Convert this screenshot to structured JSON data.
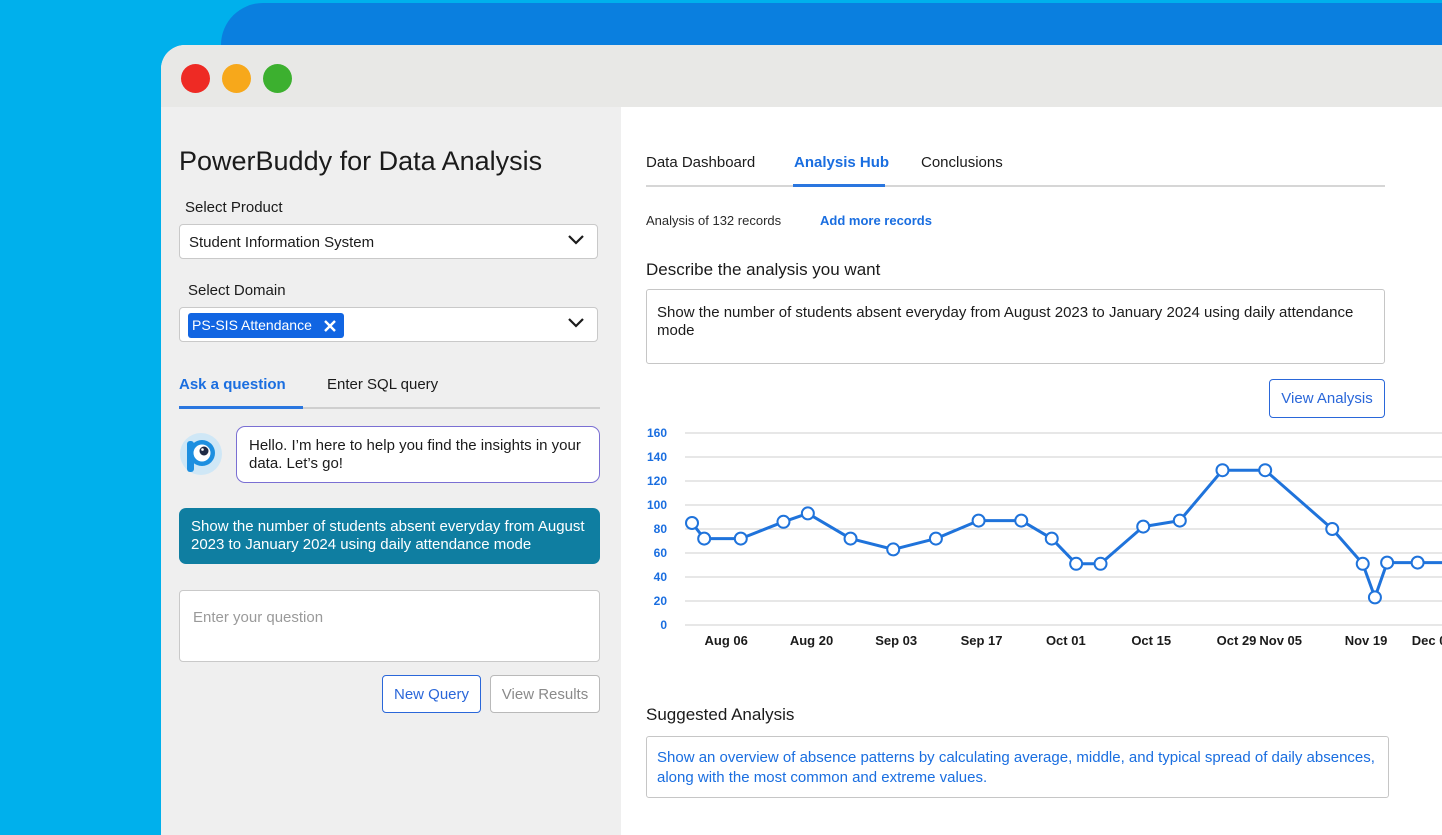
{
  "colors": {
    "backdrop": "#00b0ec",
    "accent_strip": "#0a7fdf",
    "accent": "#1a6ee0",
    "chip": "#1165e2",
    "user_message": "#0f7ea1",
    "line": "#1f73db"
  },
  "window_controls": [
    "close",
    "minimize",
    "maximize"
  ],
  "left_panel": {
    "title": "PowerBuddy for Data Analysis",
    "product_label": "Select Product",
    "product_value": "Student Information System",
    "domain_label": "Select Domain",
    "domain_chip": "PS-SIS Attendance",
    "tabs": [
      {
        "label": "Ask a question",
        "active": true
      },
      {
        "label": "Enter SQL query",
        "active": false
      }
    ],
    "assistant_message": "Hello. I’m here to help you find the insights in your data. Let’s go!",
    "user_message": "Show the number of students absent everyday from August 2023 to January 2024 using daily attendance mode",
    "question_placeholder": "Enter your question",
    "new_query_label": "New Query",
    "view_results_label": "View Results"
  },
  "right_panel": {
    "tabs": [
      {
        "label": "Data Dashboard",
        "active": false
      },
      {
        "label": "Analysis Hub",
        "active": true
      },
      {
        "label": "Conclusions",
        "active": false
      }
    ],
    "records_text": "Analysis of 132 records",
    "add_records_label": "Add more records",
    "describe_label": "Describe the analysis you want",
    "describe_text": "Show the number of students absent everyday from August 2023 to January 2024 using daily attendance mode",
    "view_analysis_label": "View Analysis",
    "suggested_label": "Suggested Analysis",
    "suggestion_text": "Show an overview of absence patterns by calculating average, middle, and typical spread of daily absences, along with the most common and extreme values."
  },
  "chart_data": {
    "type": "line",
    "title": "",
    "xlabel": "",
    "ylabel": "",
    "ylim": [
      0,
      160
    ],
    "yticks": [
      0,
      20,
      40,
      60,
      80,
      100,
      120,
      140,
      160
    ],
    "xticks": [
      "Aug 06",
      "Aug 20",
      "Sep 03",
      "Sep 17",
      "Oct 01",
      "Oct 15",
      "Oct 29",
      "Nov 05",
      "Nov 19",
      "Dec 0"
    ],
    "grid": true,
    "x": [
      "Aug 01",
      "Aug 03",
      "Aug 09",
      "Aug 16",
      "Aug 20",
      "Aug 27",
      "Sep 03",
      "Sep 10",
      "Sep 17",
      "Sep 24",
      "Sep 29",
      "Oct 03",
      "Oct 07",
      "Oct 14",
      "Oct 20",
      "Oct 27",
      "Nov 03",
      "Nov 14",
      "Nov 19",
      "Nov 21",
      "Nov 23",
      "Nov 28",
      "Dec 02"
    ],
    "series": [
      {
        "values": [
          85,
          72,
          72,
          86,
          93,
          72,
          63,
          72,
          87,
          87,
          72,
          51,
          51,
          82,
          87,
          129,
          129,
          80,
          51,
          23,
          52,
          52,
          52
        ]
      }
    ]
  }
}
